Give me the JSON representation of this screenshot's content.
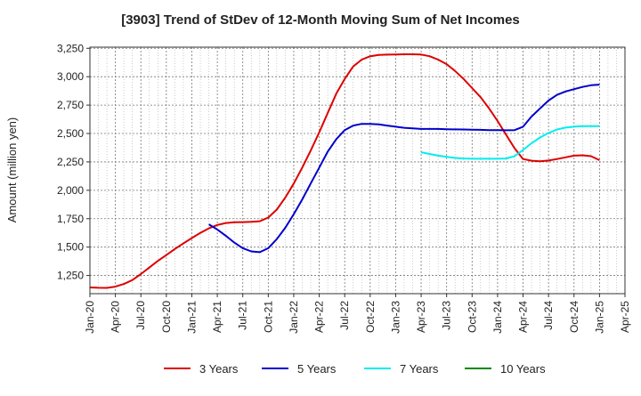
{
  "chart_data": {
    "type": "line",
    "title": "[3903]  Trend of StDev of 12-Month Moving Sum of Net Incomes",
    "xlabel": "",
    "ylabel": "Amount (million yen)",
    "ylim": [
      1090,
      3260
    ],
    "yticks": [
      1250,
      1500,
      1750,
      2000,
      2250,
      2500,
      2750,
      3000,
      3250
    ],
    "ytick_labels": [
      "1,250",
      "1,500",
      "1,750",
      "2,000",
      "2,250",
      "2,500",
      "2,750",
      "3,000",
      "3,250"
    ],
    "xlim": [
      "2020-01",
      "2025-04"
    ],
    "xticks": [
      "2020-01",
      "2020-04",
      "2020-07",
      "2020-10",
      "2021-01",
      "2021-04",
      "2021-07",
      "2021-10",
      "2022-01",
      "2022-04",
      "2022-07",
      "2022-10",
      "2023-01",
      "2023-04",
      "2023-07",
      "2023-10",
      "2024-01",
      "2024-04",
      "2024-07",
      "2024-10",
      "2025-01",
      "2025-04"
    ],
    "xtick_labels": [
      "Jan-20",
      "Apr-20",
      "Jul-20",
      "Oct-20",
      "Jan-21",
      "Apr-21",
      "Jul-21",
      "Oct-21",
      "Jan-22",
      "Apr-22",
      "Jul-22",
      "Oct-22",
      "Jan-23",
      "Apr-23",
      "Jul-23",
      "Oct-23",
      "Jan-24",
      "Apr-24",
      "Jul-24",
      "Oct-24",
      "Jan-25",
      "Apr-25"
    ],
    "grid": true,
    "legend_position": "bottom",
    "series": [
      {
        "name": "3 Years",
        "color": "#dd0000",
        "x": [
          "2020-01",
          "2020-02",
          "2020-03",
          "2020-04",
          "2020-05",
          "2020-06",
          "2020-07",
          "2020-08",
          "2020-09",
          "2020-10",
          "2020-11",
          "2020-12",
          "2021-01",
          "2021-02",
          "2021-03",
          "2021-04",
          "2021-05",
          "2021-06",
          "2021-07",
          "2021-08",
          "2021-09",
          "2021-10",
          "2021-11",
          "2021-12",
          "2022-01",
          "2022-02",
          "2022-03",
          "2022-04",
          "2022-05",
          "2022-06",
          "2022-07",
          "2022-08",
          "2022-09",
          "2022-10",
          "2022-11",
          "2022-12",
          "2023-01",
          "2023-02",
          "2023-03",
          "2023-04",
          "2023-05",
          "2023-06",
          "2023-07",
          "2023-08",
          "2023-09",
          "2023-10",
          "2023-11",
          "2023-12",
          "2024-01",
          "2024-02",
          "2024-03",
          "2024-04",
          "2024-05",
          "2024-06",
          "2024-07",
          "2024-08",
          "2024-09",
          "2024-10",
          "2024-11",
          "2024-12",
          "2025-01"
        ],
        "values": [
          1145,
          1142,
          1141,
          1152,
          1175,
          1210,
          1262,
          1320,
          1378,
          1430,
          1483,
          1532,
          1580,
          1625,
          1665,
          1695,
          1712,
          1718,
          1720,
          1722,
          1728,
          1760,
          1830,
          1935,
          2060,
          2200,
          2350,
          2510,
          2680,
          2850,
          2980,
          3090,
          3150,
          3180,
          3192,
          3194,
          3196,
          3197,
          3197,
          3195,
          3180,
          3150,
          3110,
          3050,
          2980,
          2900,
          2820,
          2720,
          2610,
          2490,
          2370,
          2275,
          2260,
          2255,
          2262,
          2275,
          2290,
          2305,
          2308,
          2300,
          2265
        ]
      },
      {
        "name": "5 Years",
        "color": "#0000cc",
        "x": [
          "2021-03",
          "2021-04",
          "2021-05",
          "2021-06",
          "2021-07",
          "2021-08",
          "2021-09",
          "2021-10",
          "2021-11",
          "2021-12",
          "2022-01",
          "2022-02",
          "2022-03",
          "2022-04",
          "2022-05",
          "2022-06",
          "2022-07",
          "2022-08",
          "2022-09",
          "2022-10",
          "2022-11",
          "2022-12",
          "2023-01",
          "2023-02",
          "2023-03",
          "2023-04",
          "2023-05",
          "2023-06",
          "2023-07",
          "2023-08",
          "2023-09",
          "2023-10",
          "2023-11",
          "2023-12",
          "2024-01",
          "2024-02",
          "2024-03",
          "2024-04",
          "2024-05",
          "2024-06",
          "2024-07",
          "2024-08",
          "2024-09",
          "2024-10",
          "2024-11",
          "2024-12",
          "2025-01"
        ],
        "values": [
          1700,
          1655,
          1600,
          1540,
          1490,
          1462,
          1455,
          1490,
          1570,
          1670,
          1790,
          1920,
          2060,
          2200,
          2340,
          2450,
          2530,
          2570,
          2585,
          2585,
          2580,
          2570,
          2560,
          2550,
          2545,
          2540,
          2540,
          2540,
          2538,
          2536,
          2535,
          2533,
          2532,
          2530,
          2530,
          2528,
          2530,
          2560,
          2650,
          2720,
          2790,
          2840,
          2870,
          2890,
          2910,
          2925,
          2930
        ]
      },
      {
        "name": "7 Years",
        "color": "#00eeee",
        "x": [
          "2023-04",
          "2023-05",
          "2023-06",
          "2023-07",
          "2023-08",
          "2023-09",
          "2023-10",
          "2023-11",
          "2023-12",
          "2024-01",
          "2024-02",
          "2024-03",
          "2024-04",
          "2024-05",
          "2024-06",
          "2024-07",
          "2024-08",
          "2024-09",
          "2024-10",
          "2024-11",
          "2024-12",
          "2025-01"
        ],
        "values": [
          2335,
          2320,
          2305,
          2295,
          2285,
          2280,
          2278,
          2278,
          2278,
          2278,
          2280,
          2300,
          2355,
          2415,
          2465,
          2505,
          2535,
          2552,
          2560,
          2565,
          2565,
          2565
        ]
      },
      {
        "name": "10 Years",
        "color": "#008800",
        "x": [],
        "values": []
      }
    ]
  }
}
